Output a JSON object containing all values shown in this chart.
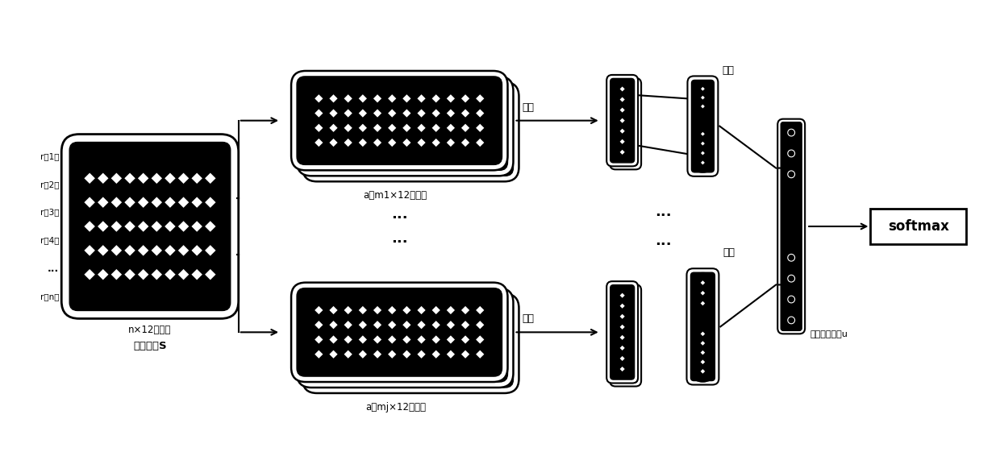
{
  "bg_color": "#ffffff",
  "input_matrix_label1": "n×12的记录",
  "input_matrix_label2": "序列矩阵S",
  "filter_top_label": "a个m1×12滤波器",
  "filter_bot_label": "a个mj×12滤波器",
  "conv_label": "卷积",
  "pool_label": "池化",
  "output_label": "输出特征向量u",
  "softmax_label": "softmax",
  "row_labels": [
    "r（1）",
    "r（2）",
    "r（3）",
    "r（4）",
    "...",
    "r（n）"
  ]
}
